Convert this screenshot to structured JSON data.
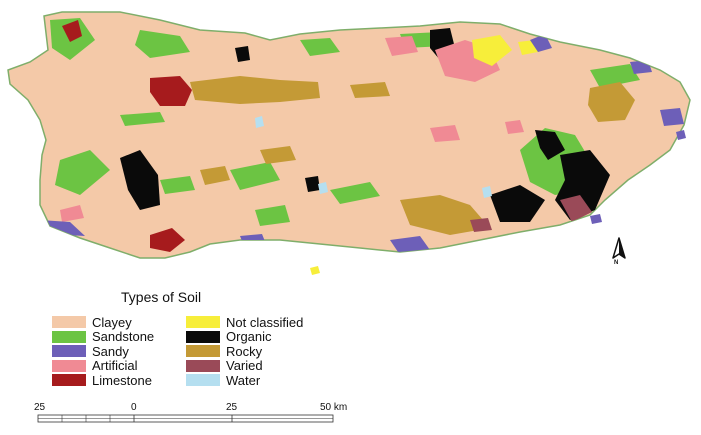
{
  "legend": {
    "title": "Types of Soil",
    "items": [
      {
        "label": "Clayey",
        "color": "#f4c9a8"
      },
      {
        "label": "Sandstone",
        "color": "#6cc443"
      },
      {
        "label": "Sandy",
        "color": "#6d5fb8"
      },
      {
        "label": "Artificial",
        "color": "#f08a94"
      },
      {
        "label": "Limestone",
        "color": "#a61b1d"
      },
      {
        "label": "Not classified",
        "color": "#f7ee3a"
      },
      {
        "label": "Organic",
        "color": "#0a0a0a"
      },
      {
        "label": "Rocky",
        "color": "#c49a36"
      },
      {
        "label": "Varied",
        "color": "#9a4a58"
      },
      {
        "label": "Water",
        "color": "#b5dff0"
      }
    ]
  },
  "north": {
    "label": "N",
    "icon": "north-arrow-icon"
  },
  "scale": {
    "labels": [
      "25",
      "0",
      "25",
      "50 km"
    ]
  }
}
